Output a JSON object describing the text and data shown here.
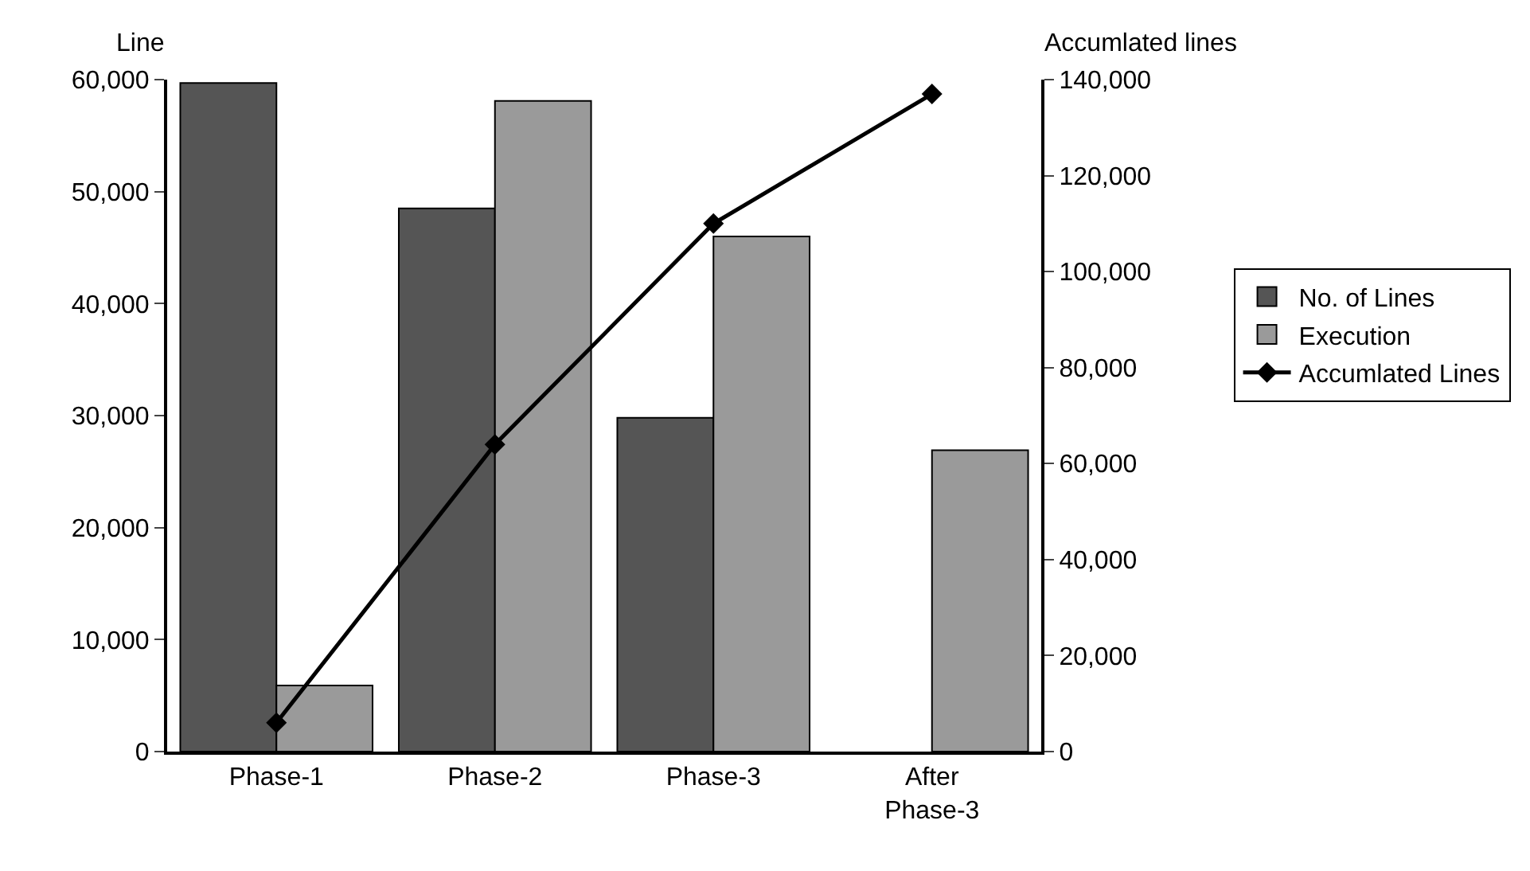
{
  "chart_data": {
    "type": "bar",
    "categories": [
      "Phase-1",
      "Phase-2",
      "Phase-3",
      "After\nPhase-3"
    ],
    "ylabel": "Line",
    "y2label": "Accumlated lines",
    "series": [
      {
        "name": "No. of Lines",
        "color": "#555555",
        "values": [
          59700,
          48500,
          29800,
          null
        ]
      },
      {
        "name": "Execution",
        "color": "#9a9a9a",
        "values": [
          5900,
          58100,
          46000,
          26900
        ]
      },
      {
        "name": "Accumlated Lines",
        "type": "line",
        "axis": "y2",
        "color": "#000000",
        "values": [
          6000,
          64000,
          110000,
          137000
        ]
      }
    ],
    "ylim": [
      0,
      60000
    ],
    "yticks": [
      {
        "value": 0,
        "label": "0"
      },
      {
        "value": 10000,
        "label": "10,000"
      },
      {
        "value": 20000,
        "label": "20,000"
      },
      {
        "value": 30000,
        "label": "30,000"
      },
      {
        "value": 40000,
        "label": "40,000"
      },
      {
        "value": 50000,
        "label": "50,000"
      },
      {
        "value": 60000,
        "label": "60,000"
      }
    ],
    "y2lim": [
      0,
      140000
    ],
    "y2ticks": [
      {
        "value": 0,
        "label": "0"
      },
      {
        "value": 20000,
        "label": "20,000"
      },
      {
        "value": 40000,
        "label": "40,000"
      },
      {
        "value": 60000,
        "label": "60,000"
      },
      {
        "value": 80000,
        "label": "80,000"
      },
      {
        "value": 100000,
        "label": "100,000"
      },
      {
        "value": 120000,
        "label": "120,000"
      },
      {
        "value": 140000,
        "label": "140,000"
      }
    ],
    "marker": "diamond",
    "line_style": "solid",
    "legend": "right"
  }
}
